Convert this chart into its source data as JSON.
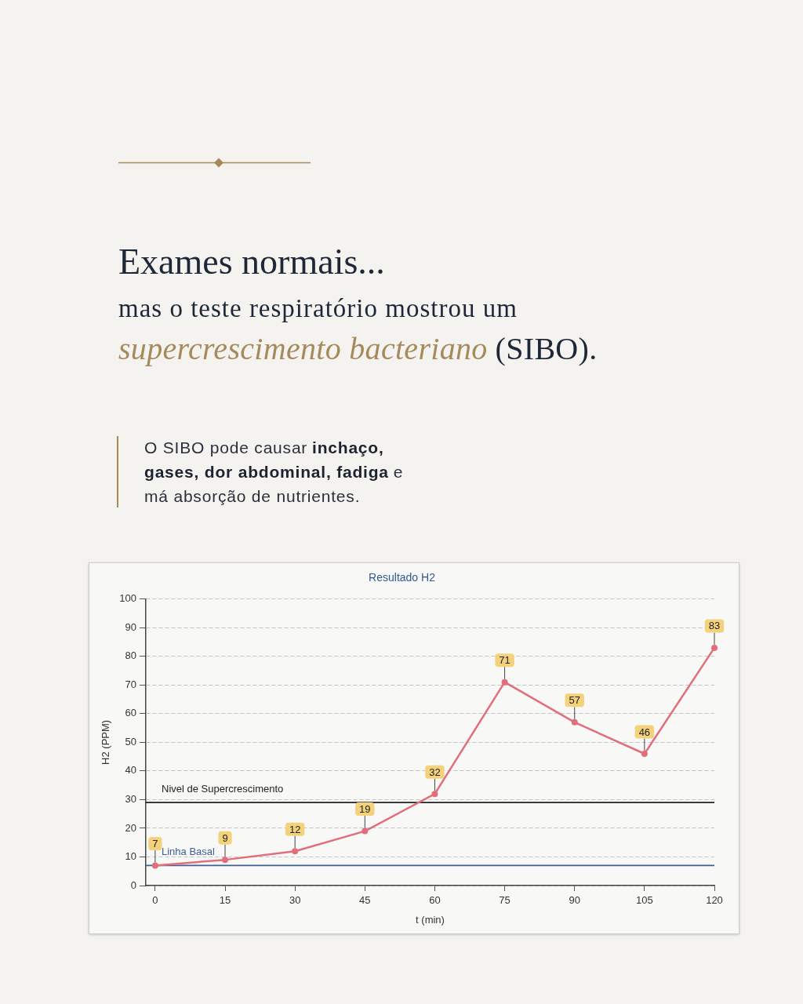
{
  "chart_data": {
    "type": "line",
    "title": "Resultado H2",
    "xlabel": "t (min)",
    "ylabel": "H2 (PPM)",
    "x": [
      0,
      15,
      30,
      45,
      60,
      75,
      90,
      105,
      120
    ],
    "series": [
      {
        "color": "#e06f7b",
        "values": [
          7,
          9,
          12,
          19,
          32,
          71,
          57,
          46,
          83
        ]
      }
    ],
    "xlim": [
      -2,
      120
    ],
    "xticks": [
      0,
      15,
      30,
      45,
      60,
      75,
      90,
      105,
      120
    ],
    "ylim": [
      0,
      100
    ],
    "yticks": [
      0,
      10,
      20,
      30,
      40,
      50,
      60,
      70,
      80,
      90,
      100
    ],
    "grid": "y",
    "marker": "circle",
    "line_style": "solid",
    "data_labels": true,
    "ref_lines": [
      {
        "axis": "y",
        "value": 29,
        "label": "Nivel de Supercrescimento",
        "color": "#222222"
      },
      {
        "axis": "y",
        "value": 7,
        "label": "Linha Basal",
        "color": "#3d6099"
      }
    ],
    "annotations": [
      "Exames normais...",
      "mas o teste respiratório mostrou um",
      "supercrescimento bacteriano",
      "(SIBO).",
      "O SIBO pode causar",
      "inchaço,",
      "gases, dor abdominal, fadiga",
      "e",
      "má absorção de nutrientes."
    ]
  }
}
